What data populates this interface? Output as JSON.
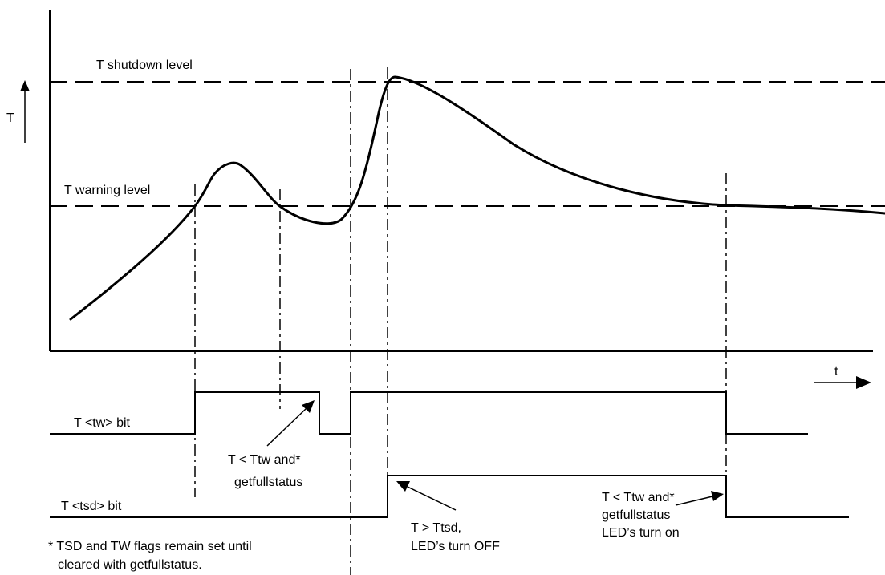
{
  "labels": {
    "shutdown_level": "T shutdown level",
    "warning_level": "T warning level",
    "y_axis": "T",
    "x_axis": "t",
    "tw_bit": "T <tw> bit",
    "tsd_bit": "T <tsd> bit"
  },
  "annotations": {
    "tw_clear_line1": "T < Ttw and*",
    "tw_clear_line2": "getfullstatus",
    "tsd_set_line1": "T > Ttsd,",
    "tsd_set_line2": "LED’s turn OFF",
    "tsd_clear_line1": "T < Ttw and*",
    "tsd_clear_line2": "getfullstatus",
    "tsd_clear_line3": "LED’s turn on"
  },
  "footnote": {
    "line1": "* TSD and TW flags remain set until",
    "line2": "cleared with getfullstatus."
  },
  "colors": {
    "stroke": "#000000",
    "background": "#ffffff"
  }
}
